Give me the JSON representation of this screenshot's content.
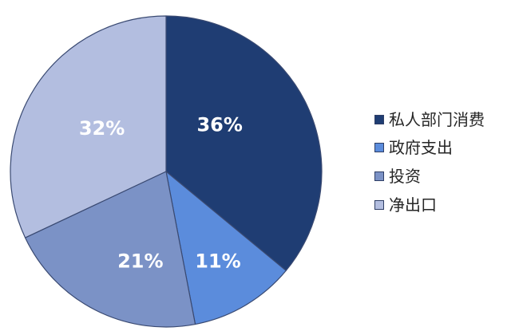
{
  "chart_data": {
    "type": "pie",
    "categories": [
      "私人部门消费",
      "政府支出",
      "投资",
      "净出口"
    ],
    "values": [
      36,
      11,
      21,
      32
    ],
    "data_labels": [
      "36%",
      "11%",
      "21%",
      "32%"
    ],
    "colors": [
      "#1f3d73",
      "#5b8cdc",
      "#7b92c6",
      "#b3bee0"
    ],
    "legend": "right"
  }
}
